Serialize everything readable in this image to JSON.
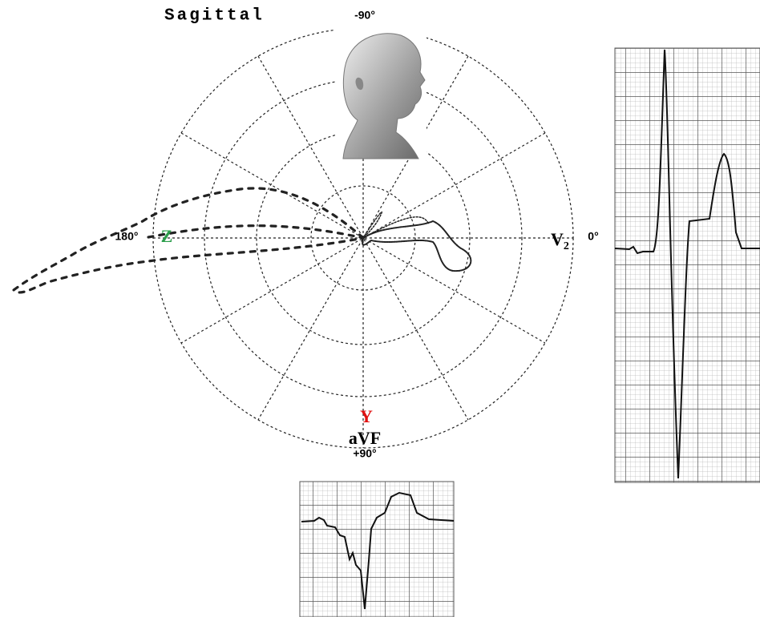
{
  "title": "Sagittal",
  "angle_labels": {
    "top": "-90°",
    "left": "180°",
    "right": "0°",
    "bottom": "+90°"
  },
  "axis_labels": {
    "z": "Z",
    "v2": {
      "main": "V",
      "sub": "2"
    },
    "y": "Y",
    "avf": "aVF"
  }
}
